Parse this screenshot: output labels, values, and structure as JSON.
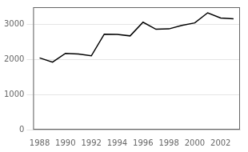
{
  "chart_data": {
    "type": "line",
    "x": [
      1988,
      1989,
      1990,
      1991,
      1992,
      1993,
      1994,
      1995,
      1996,
      1997,
      1998,
      1999,
      2000,
      2001,
      2002,
      2003
    ],
    "values": [
      2050,
      1930,
      2180,
      2160,
      2110,
      2730,
      2720,
      2680,
      3070,
      2870,
      2880,
      2980,
      3050,
      3340,
      3190,
      3170
    ],
    "color": "#000000",
    "xlim": [
      1987.5,
      2003.5
    ],
    "xticks": [
      1988,
      1990,
      1992,
      1994,
      1996,
      1998,
      2000,
      2002
    ],
    "ylim": [
      0,
      3500
    ],
    "yticks": [
      0,
      1000,
      2000,
      3000
    ],
    "grid": true
  }
}
